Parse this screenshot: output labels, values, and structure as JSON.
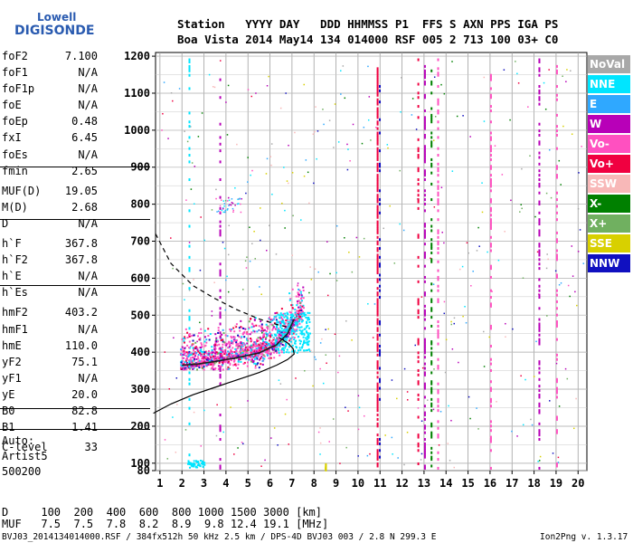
{
  "logo": {
    "line1": "Lowell",
    "line2": "DIGISONDE"
  },
  "header": {
    "row1": "Station   YYYY DAY   DDD HHMMSS P1  FFS S AXN PPS IGA PS",
    "row2": "Boa Vista 2014 May14 134 014000 RSF 005 2 713 100 03+ C0"
  },
  "params": [
    {
      "k": "foF2",
      "v": "7.100"
    },
    {
      "k": "foF1",
      "v": "N/A"
    },
    {
      "k": "foF1p",
      "v": "N/A"
    },
    {
      "k": "foE",
      "v": "N/A"
    },
    {
      "k": "foEp",
      "v": "0.48"
    },
    {
      "k": "fxI",
      "v": "6.45"
    },
    {
      "k": "foEs",
      "v": "N/A"
    },
    {
      "k": "fmin",
      "v": "2.65"
    },
    {
      "k": "MUF(D)",
      "v": "19.05"
    },
    {
      "k": "M(D)",
      "v": "2.68"
    },
    {
      "k": "D",
      "v": "N/A"
    },
    {
      "k": "h`F",
      "v": "367.8"
    },
    {
      "k": "h`F2",
      "v": "367.8"
    },
    {
      "k": "h`E",
      "v": "N/A"
    },
    {
      "k": "h`Es",
      "v": "N/A"
    },
    {
      "k": "hmF2",
      "v": "403.2"
    },
    {
      "k": "hmF1",
      "v": "N/A"
    },
    {
      "k": "hmE",
      "v": "110.0"
    },
    {
      "k": "yF2",
      "v": "75.1"
    },
    {
      "k": "yF1",
      "v": "N/A"
    },
    {
      "k": "yE",
      "v": "20.0"
    },
    {
      "k": "B0",
      "v": "82.8"
    },
    {
      "k": "B1",
      "v": "1.41"
    },
    {
      "k": "C-level",
      "v": "33"
    }
  ],
  "auto": {
    "line1": "Auto:",
    "line2": "Artist5",
    "line3": "500200"
  },
  "legend": [
    {
      "label": "NoVal",
      "color": "#a8a8a8"
    },
    {
      "label": "NNE",
      "color": "#00e5ff"
    },
    {
      "label": "E",
      "color": "#2fa8ff"
    },
    {
      "label": "W",
      "color": "#b800b8"
    },
    {
      "label": "Vo-",
      "color": "#ff50c0"
    },
    {
      "label": "Vo+",
      "color": "#f00040"
    },
    {
      "label": "SSW",
      "color": "#f8b8b8"
    },
    {
      "label": "X-",
      "color": "#008000"
    },
    {
      "label": "X+",
      "color": "#70b060"
    },
    {
      "label": "SSE",
      "color": "#d8d000"
    },
    {
      "label": "NNW",
      "color": "#1010c0"
    }
  ],
  "bottom": {
    "row_d": "D     100  200  400  600  800 1000 1500 3000 [km]",
    "row_muf": "MUF   7.5  7.5  7.8  8.2  8.9  9.8 12.4 19.1 [MHz]"
  },
  "footer": {
    "left": "BVJ03_2014134014000.RSF / 384fx512h 50 kHz 2.5 km / DPS-4D BVJ03 003 / 2.8 N 299.3 E",
    "right": "Ion2Png v. 1.3.17"
  },
  "chart_data": {
    "type": "scatter",
    "xlim": [
      0.8,
      20.4
    ],
    "ylim": [
      80,
      1210
    ],
    "x_ticks": [
      "1",
      "2",
      "3",
      "4",
      "5",
      "6",
      "7",
      "8",
      "9",
      "10",
      "11",
      "12",
      "13",
      "14",
      "15",
      "16",
      "17",
      "18",
      "19",
      "20"
    ],
    "y_ticks": [
      "80",
      "100",
      "200",
      "300",
      "400",
      "500",
      "600",
      "700",
      "800",
      "900",
      "1000",
      "1100",
      "1200"
    ],
    "y_tick_values": [
      80,
      100,
      200,
      300,
      400,
      500,
      600,
      700,
      800,
      900,
      1000,
      1100,
      1200
    ],
    "grid": true,
    "profile_solid": [
      [
        0.7,
        235
      ],
      [
        1.5,
        260
      ],
      [
        2.5,
        285
      ],
      [
        3.5,
        305
      ],
      [
        4.5,
        325
      ],
      [
        5.5,
        345
      ],
      [
        6.3,
        365
      ],
      [
        6.8,
        380
      ],
      [
        7.1,
        395
      ],
      [
        7.05,
        410
      ],
      [
        6.8,
        425
      ],
      [
        6.4,
        440
      ]
    ],
    "profile_dashed": [
      [
        0.8,
        720
      ],
      [
        1.5,
        640
      ],
      [
        2.5,
        580
      ],
      [
        3.5,
        545
      ],
      [
        4.5,
        515
      ],
      [
        5.5,
        490
      ],
      [
        6.3,
        475
      ],
      [
        7.0,
        465
      ]
    ],
    "trace_black": [
      [
        2.0,
        365
      ],
      [
        2.7,
        368
      ],
      [
        3.5,
        375
      ],
      [
        4.5,
        385
      ],
      [
        5.5,
        398
      ],
      [
        6.3,
        420
      ],
      [
        6.8,
        450
      ],
      [
        7.1,
        490
      ]
    ]
  }
}
